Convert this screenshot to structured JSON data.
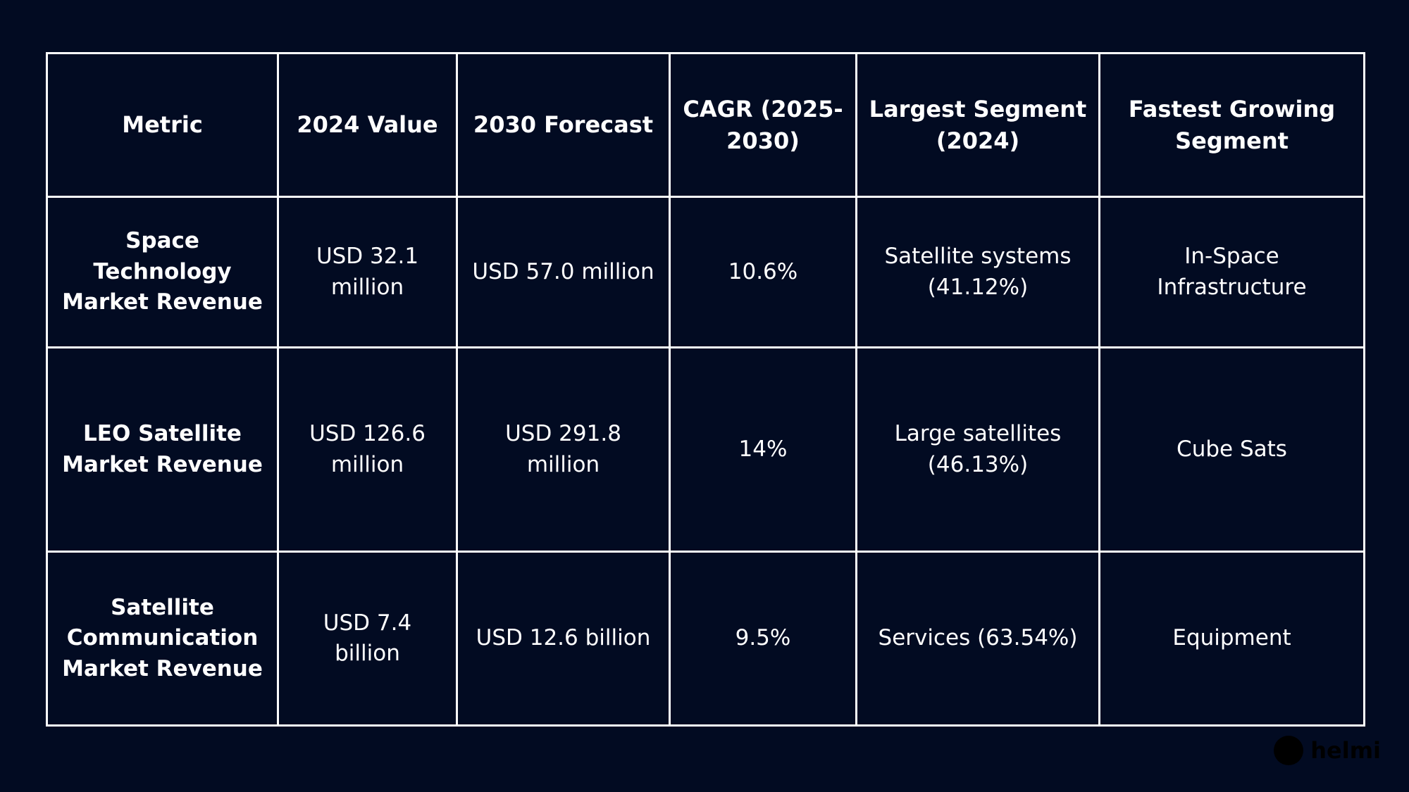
{
  "table": {
    "headers": [
      "Metric",
      "2024 Value",
      "2030 Forecast",
      "CAGR (2025-2030)",
      "Largest Segment (2024)",
      "Fastest Growing Segment"
    ],
    "rows": [
      [
        "Space Technology Market Revenue",
        "USD 32.1 million",
        "USD 57.0 million",
        "10.6%",
        "Satellite systems (41.12%)",
        "In-Space Infrastructure"
      ],
      [
        "LEO Satellite Market Revenue",
        "USD 126.6 million",
        "USD 291.8 million",
        "14%",
        "Large satellites (46.13%)",
        "Cube Sats"
      ],
      [
        "Satellite Communication Market Revenue",
        "USD 7.4 billion",
        "USD 12.6 billion",
        "9.5%",
        "Services (63.54%)",
        "Equipment"
      ]
    ]
  },
  "watermark": {
    "text": "helmi",
    "icon": "logo-circle-icon"
  }
}
